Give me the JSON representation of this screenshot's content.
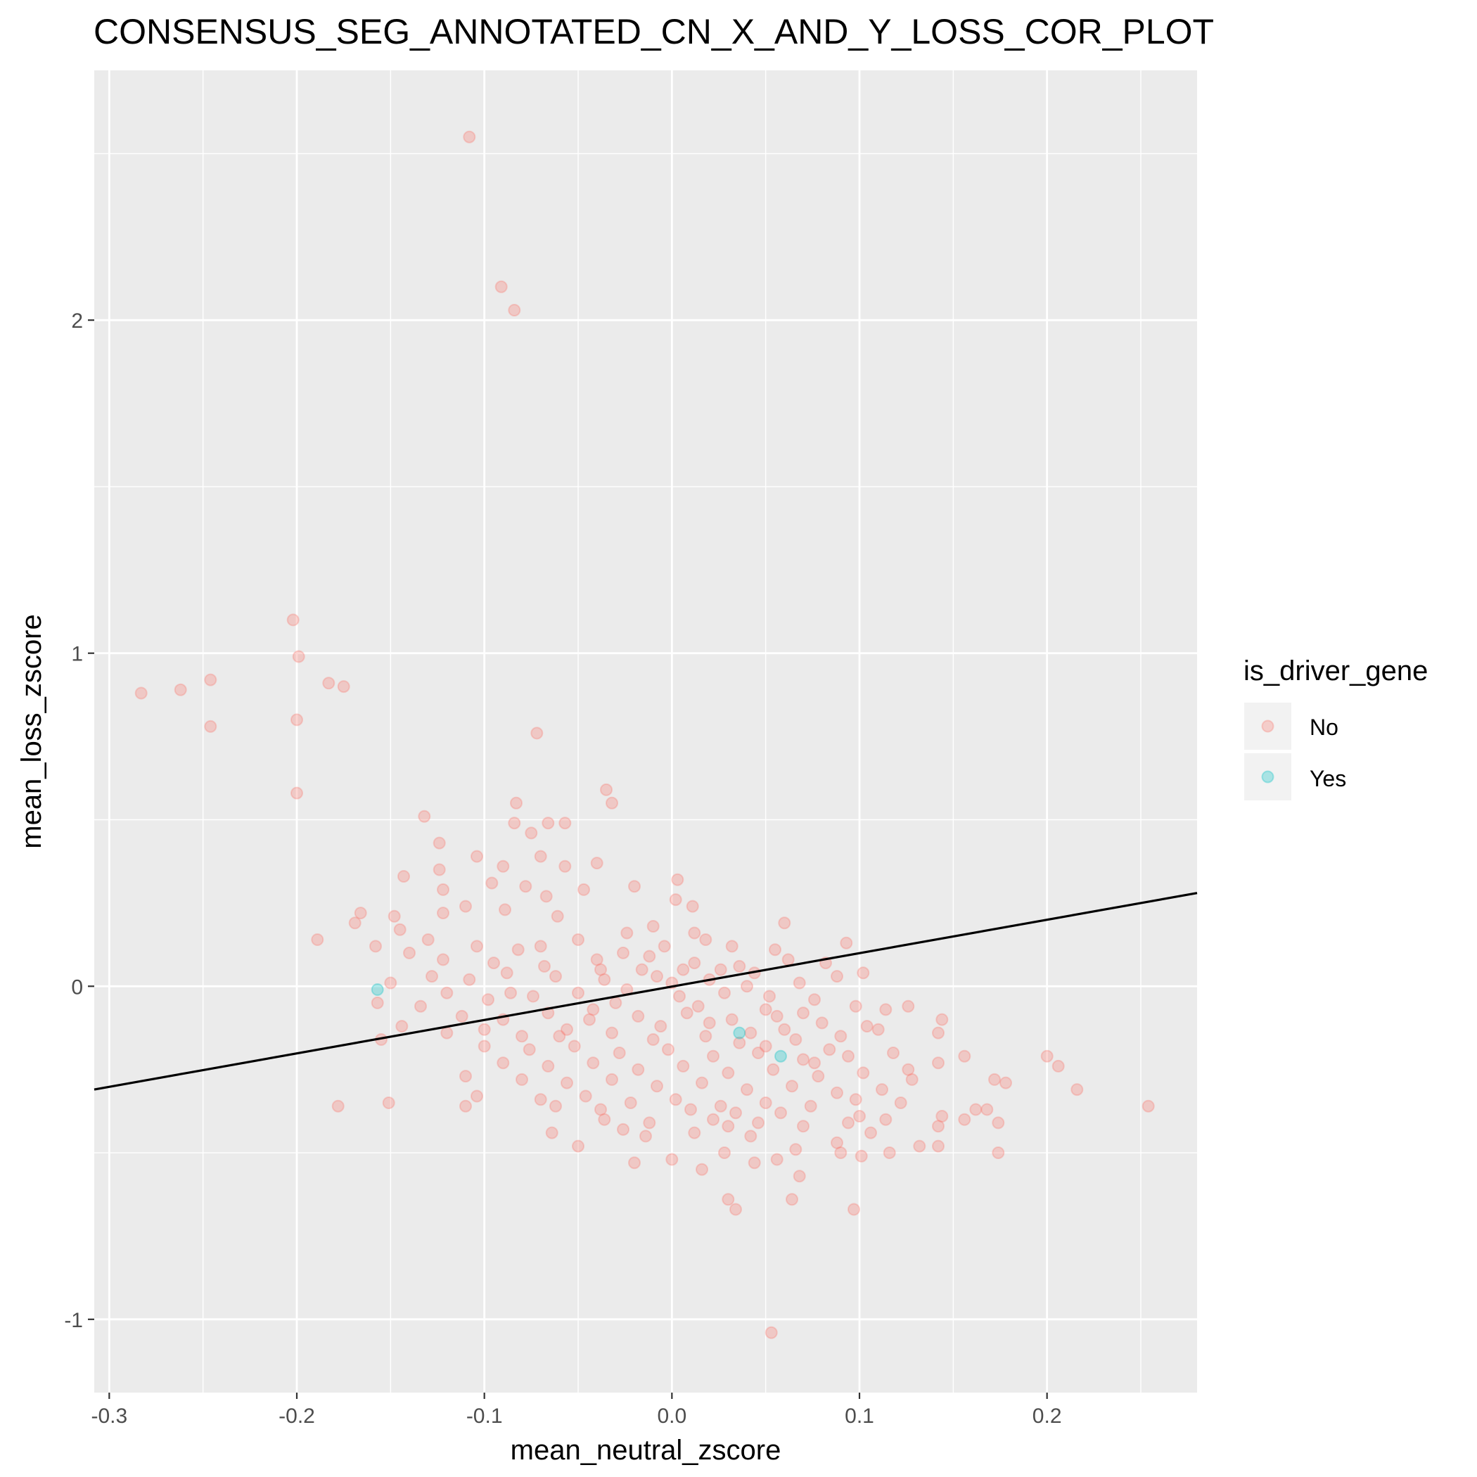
{
  "chart_data": {
    "type": "scatter",
    "title": "CONSENSUS_SEG_ANNOTATED_CN_X_AND_Y_LOSS_COR_PLOT",
    "xlabel": "mean_neutral_zscore",
    "ylabel": "mean_loss_zscore",
    "xlim": [
      -0.308,
      0.28
    ],
    "ylim": [
      -1.22,
      2.75
    ],
    "x_ticks": [
      -0.3,
      -0.2,
      -0.1,
      0.0,
      0.1,
      0.2
    ],
    "x_tick_labels": [
      "-0.3",
      "-0.2",
      "-0.1",
      "0.0",
      "0.1",
      "0.2"
    ],
    "y_ticks": [
      -1,
      0,
      1,
      2
    ],
    "y_tick_labels": [
      "-1",
      "0",
      "1",
      "2"
    ],
    "grid": true,
    "legend": {
      "title": "is_driver_gene",
      "position": "right",
      "entries": [
        {
          "label": "No",
          "color": "#F8766D"
        },
        {
          "label": "Yes",
          "color": "#00BFC4"
        }
      ]
    },
    "regression_line": {
      "x": [
        -0.308,
        0.28
      ],
      "y": [
        -0.31,
        0.28
      ],
      "color": "#000000"
    },
    "series": [
      {
        "name": "No",
        "color": "#F8766D",
        "opacity": 0.3,
        "points": [
          [
            -0.108,
            2.55
          ],
          [
            -0.091,
            2.1
          ],
          [
            -0.084,
            2.03
          ],
          [
            -0.202,
            1.1
          ],
          [
            -0.199,
            0.99
          ],
          [
            -0.2,
            0.8
          ],
          [
            -0.2,
            0.58
          ],
          [
            -0.283,
            0.88
          ],
          [
            -0.262,
            0.89
          ],
          [
            -0.246,
            0.92
          ],
          [
            -0.246,
            0.78
          ],
          [
            -0.183,
            0.91
          ],
          [
            -0.175,
            0.9
          ],
          [
            -0.072,
            0.76
          ],
          [
            -0.035,
            0.59
          ],
          [
            -0.032,
            0.55
          ],
          [
            -0.083,
            0.55
          ],
          [
            -0.132,
            0.51
          ],
          [
            -0.084,
            0.49
          ],
          [
            -0.066,
            0.49
          ],
          [
            -0.057,
            0.49
          ],
          [
            -0.075,
            0.46
          ],
          [
            -0.124,
            0.43
          ],
          [
            -0.104,
            0.39
          ],
          [
            -0.07,
            0.39
          ],
          [
            -0.09,
            0.36
          ],
          [
            -0.124,
            0.35
          ],
          [
            -0.04,
            0.37
          ],
          [
            -0.057,
            0.36
          ],
          [
            0.003,
            0.32
          ],
          [
            -0.096,
            0.31
          ],
          [
            -0.078,
            0.3
          ],
          [
            -0.143,
            0.33
          ],
          [
            -0.122,
            0.29
          ],
          [
            -0.067,
            0.27
          ],
          [
            -0.047,
            0.29
          ],
          [
            -0.02,
            0.3
          ],
          [
            0.002,
            0.26
          ],
          [
            -0.11,
            0.24
          ],
          [
            -0.166,
            0.22
          ],
          [
            -0.148,
            0.21
          ],
          [
            -0.169,
            0.19
          ],
          [
            -0.122,
            0.22
          ],
          [
            -0.089,
            0.23
          ],
          [
            -0.061,
            0.21
          ],
          [
            0.011,
            0.24
          ],
          [
            0.06,
            0.19
          ],
          [
            -0.189,
            0.14
          ],
          [
            -0.145,
            0.17
          ],
          [
            -0.13,
            0.14
          ],
          [
            -0.104,
            0.12
          ],
          [
            -0.082,
            0.11
          ],
          [
            -0.05,
            0.14
          ],
          [
            -0.024,
            0.16
          ],
          [
            -0.01,
            0.18
          ],
          [
            0.018,
            0.14
          ],
          [
            0.032,
            0.12
          ],
          [
            0.055,
            0.11
          ],
          [
            -0.158,
            0.12
          ],
          [
            -0.14,
            0.1
          ],
          [
            -0.122,
            0.08
          ],
          [
            -0.095,
            0.07
          ],
          [
            -0.068,
            0.06
          ],
          [
            -0.04,
            0.08
          ],
          [
            -0.012,
            0.09
          ],
          [
            0.012,
            0.07
          ],
          [
            0.036,
            0.06
          ],
          [
            0.062,
            0.08
          ],
          [
            0.082,
            0.07
          ],
          [
            0.093,
            0.13
          ],
          [
            -0.128,
            0.03
          ],
          [
            -0.108,
            0.02
          ],
          [
            -0.088,
            0.04
          ],
          [
            -0.062,
            0.03
          ],
          [
            -0.036,
            0.02
          ],
          [
            -0.008,
            0.03
          ],
          [
            0.02,
            0.02
          ],
          [
            0.044,
            0.04
          ],
          [
            0.068,
            0.01
          ],
          [
            0.088,
            0.03
          ],
          [
            0.102,
            0.04
          ],
          [
            -0.15,
            0.01
          ],
          [
            -0.12,
            -0.02
          ],
          [
            -0.098,
            -0.04
          ],
          [
            -0.074,
            -0.03
          ],
          [
            -0.05,
            -0.02
          ],
          [
            -0.024,
            -0.01
          ],
          [
            0.004,
            -0.03
          ],
          [
            0.028,
            -0.02
          ],
          [
            0.052,
            -0.03
          ],
          [
            0.076,
            -0.04
          ],
          [
            0.098,
            -0.06
          ],
          [
            0.114,
            -0.07
          ],
          [
            -0.157,
            -0.05
          ],
          [
            -0.134,
            -0.06
          ],
          [
            -0.112,
            -0.09
          ],
          [
            -0.09,
            -0.1
          ],
          [
            -0.066,
            -0.08
          ],
          [
            -0.042,
            -0.07
          ],
          [
            -0.018,
            -0.09
          ],
          [
            0.008,
            -0.08
          ],
          [
            0.032,
            -0.1
          ],
          [
            0.056,
            -0.09
          ],
          [
            0.08,
            -0.11
          ],
          [
            0.104,
            -0.12
          ],
          [
            0.126,
            -0.06
          ],
          [
            0.144,
            -0.1
          ],
          [
            -0.144,
            -0.12
          ],
          [
            -0.12,
            -0.14
          ],
          [
            -0.1,
            -0.13
          ],
          [
            -0.08,
            -0.15
          ],
          [
            -0.056,
            -0.13
          ],
          [
            -0.032,
            -0.14
          ],
          [
            -0.006,
            -0.12
          ],
          [
            0.018,
            -0.15
          ],
          [
            0.042,
            -0.14
          ],
          [
            0.066,
            -0.16
          ],
          [
            0.09,
            -0.15
          ],
          [
            0.11,
            -0.13
          ],
          [
            0.142,
            -0.14
          ],
          [
            -0.155,
            -0.16
          ],
          [
            -0.1,
            -0.18
          ],
          [
            -0.076,
            -0.19
          ],
          [
            -0.052,
            -0.18
          ],
          [
            -0.028,
            -0.2
          ],
          [
            -0.002,
            -0.19
          ],
          [
            0.022,
            -0.21
          ],
          [
            0.046,
            -0.2
          ],
          [
            0.07,
            -0.22
          ],
          [
            0.094,
            -0.21
          ],
          [
            0.118,
            -0.2
          ],
          [
            0.156,
            -0.21
          ],
          [
            -0.09,
            -0.23
          ],
          [
            -0.066,
            -0.24
          ],
          [
            -0.042,
            -0.23
          ],
          [
            -0.018,
            -0.25
          ],
          [
            0.006,
            -0.24
          ],
          [
            0.03,
            -0.26
          ],
          [
            0.054,
            -0.25
          ],
          [
            0.078,
            -0.27
          ],
          [
            0.102,
            -0.26
          ],
          [
            0.126,
            -0.25
          ],
          [
            0.142,
            -0.23
          ],
          [
            0.2,
            -0.21
          ],
          [
            0.206,
            -0.24
          ],
          [
            -0.11,
            -0.27
          ],
          [
            -0.08,
            -0.28
          ],
          [
            -0.056,
            -0.29
          ],
          [
            -0.032,
            -0.28
          ],
          [
            -0.008,
            -0.3
          ],
          [
            0.016,
            -0.29
          ],
          [
            0.04,
            -0.31
          ],
          [
            0.064,
            -0.3
          ],
          [
            0.088,
            -0.32
          ],
          [
            0.112,
            -0.31
          ],
          [
            0.128,
            -0.28
          ],
          [
            0.172,
            -0.28
          ],
          [
            0.178,
            -0.29
          ],
          [
            0.216,
            -0.31
          ],
          [
            -0.104,
            -0.33
          ],
          [
            -0.07,
            -0.34
          ],
          [
            -0.046,
            -0.33
          ],
          [
            -0.022,
            -0.35
          ],
          [
            0.002,
            -0.34
          ],
          [
            0.026,
            -0.36
          ],
          [
            0.05,
            -0.35
          ],
          [
            0.074,
            -0.36
          ],
          [
            0.098,
            -0.34
          ],
          [
            0.122,
            -0.35
          ],
          [
            -0.178,
            -0.36
          ],
          [
            -0.151,
            -0.35
          ],
          [
            -0.11,
            -0.36
          ],
          [
            -0.062,
            -0.36
          ],
          [
            -0.038,
            -0.37
          ],
          [
            0.01,
            -0.37
          ],
          [
            0.034,
            -0.38
          ],
          [
            0.058,
            -0.38
          ],
          [
            0.1,
            -0.39
          ],
          [
            0.144,
            -0.39
          ],
          [
            0.162,
            -0.37
          ],
          [
            0.168,
            -0.37
          ],
          [
            0.254,
            -0.36
          ],
          [
            -0.036,
            -0.4
          ],
          [
            -0.012,
            -0.41
          ],
          [
            0.022,
            -0.4
          ],
          [
            0.046,
            -0.41
          ],
          [
            0.07,
            -0.42
          ],
          [
            0.094,
            -0.41
          ],
          [
            0.114,
            -0.4
          ],
          [
            0.156,
            -0.4
          ],
          [
            0.174,
            -0.41
          ],
          [
            -0.026,
            -0.43
          ],
          [
            0.012,
            -0.44
          ],
          [
            0.03,
            -0.42
          ],
          [
            0.042,
            -0.45
          ],
          [
            0.106,
            -0.44
          ],
          [
            0.142,
            -0.42
          ],
          [
            -0.064,
            -0.44
          ],
          [
            -0.014,
            -0.45
          ],
          [
            0.088,
            -0.47
          ],
          [
            -0.05,
            -0.48
          ],
          [
            0.142,
            -0.48
          ],
          [
            0.028,
            -0.5
          ],
          [
            0.066,
            -0.49
          ],
          [
            0.09,
            -0.5
          ],
          [
            0.101,
            -0.51
          ],
          [
            0.116,
            -0.5
          ],
          [
            0.132,
            -0.48
          ],
          [
            0.174,
            -0.5
          ],
          [
            -0.02,
            -0.53
          ],
          [
            0.0,
            -0.52
          ],
          [
            0.044,
            -0.53
          ],
          [
            0.056,
            -0.52
          ],
          [
            0.016,
            -0.55
          ],
          [
            0.068,
            -0.57
          ],
          [
            0.03,
            -0.64
          ],
          [
            0.034,
            -0.67
          ],
          [
            0.064,
            -0.64
          ],
          [
            0.097,
            -0.67
          ],
          [
            0.053,
            -1.04
          ],
          [
            -0.004,
            0.12
          ],
          [
            0.012,
            0.16
          ],
          [
            -0.016,
            0.05
          ],
          [
            0.0,
            0.01
          ],
          [
            -0.03,
            -0.05
          ],
          [
            0.014,
            -0.06
          ],
          [
            0.04,
            0.0
          ],
          [
            -0.044,
            -0.1
          ],
          [
            0.026,
            0.05
          ],
          [
            -0.06,
            -0.15
          ],
          [
            0.05,
            -0.07
          ],
          [
            0.07,
            -0.08
          ],
          [
            -0.01,
            -0.16
          ],
          [
            0.036,
            -0.17
          ],
          [
            0.06,
            -0.13
          ],
          [
            0.084,
            -0.19
          ],
          [
            -0.026,
            0.1
          ],
          [
            -0.07,
            0.12
          ],
          [
            -0.086,
            -0.02
          ],
          [
            0.05,
            -0.18
          ],
          [
            0.02,
            -0.11
          ],
          [
            -0.038,
            0.05
          ],
          [
            0.076,
            -0.23
          ],
          [
            0.006,
            0.05
          ]
        ]
      },
      {
        "name": "Yes",
        "color": "#00BFC4",
        "opacity": 0.3,
        "points": [
          [
            -0.157,
            -0.01
          ],
          [
            0.036,
            -0.14
          ],
          [
            0.058,
            -0.21
          ]
        ]
      }
    ]
  }
}
